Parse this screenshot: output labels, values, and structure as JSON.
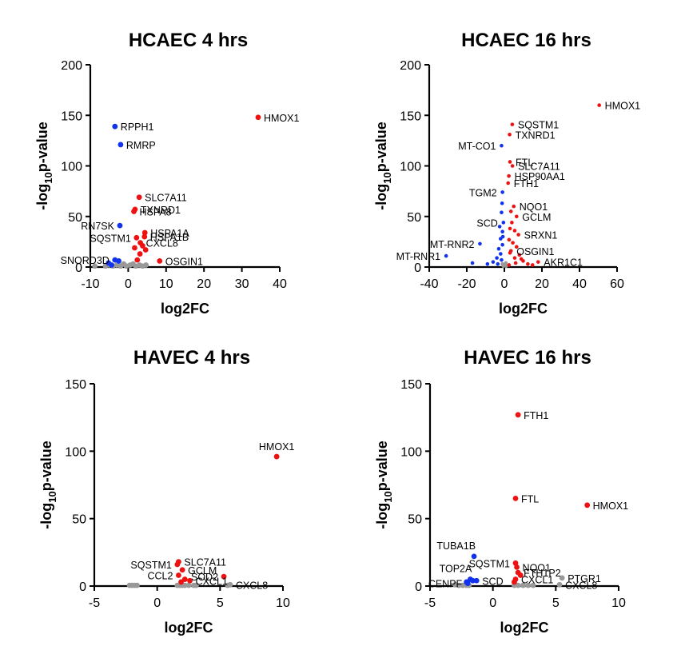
{
  "colors": {
    "up": "#ee1111",
    "down": "#1133ee",
    "ns": "#999999"
  },
  "chart_data": [
    {
      "type": "scatter",
      "title": "HCAEC 4 hrs",
      "xlabel": "log2FC",
      "ylabel": {
        "base": "-log",
        "sub": "10",
        "rest": "p-value"
      },
      "xlim": [
        -10,
        40
      ],
      "ylim": [
        0,
        200
      ],
      "xticks": [
        -10,
        0,
        10,
        20,
        30,
        40
      ],
      "yticks": [
        0,
        50,
        100,
        150,
        200
      ],
      "points": [
        {
          "x": 34.3,
          "y": 148,
          "g": "up",
          "label": "HMOX1",
          "side": "right"
        },
        {
          "x": -3.5,
          "y": 139,
          "g": "down",
          "label": "RPPH1",
          "side": "right"
        },
        {
          "x": -2.0,
          "y": 121,
          "g": "down",
          "label": "RMRP",
          "side": "right"
        },
        {
          "x": 2.9,
          "y": 69,
          "g": "up",
          "label": "SLC7A11",
          "side": "right"
        },
        {
          "x": 1.8,
          "y": 57,
          "g": "up",
          "label": "TXNRD1",
          "side": "right"
        },
        {
          "x": 1.5,
          "y": 55,
          "g": "up",
          "label": "HSPA8",
          "side": "right"
        },
        {
          "x": -2.2,
          "y": 41,
          "g": "down",
          "label": "RN7SK",
          "side": "left"
        },
        {
          "x": 4.4,
          "y": 34,
          "g": "up",
          "label": "HSPA1A",
          "side": "right"
        },
        {
          "x": 2.2,
          "y": 29,
          "g": "up",
          "label": "SQSTM1",
          "side": "left"
        },
        {
          "x": 4.3,
          "y": 30,
          "g": "up",
          "label": "HSPA1B",
          "side": "right"
        },
        {
          "x": 3.2,
          "y": 24,
          "g": "up",
          "label": "CXCL8",
          "side": "right"
        },
        {
          "x": -3.5,
          "y": 7,
          "g": "down",
          "label": "SNORD3D",
          "side": "left"
        },
        {
          "x": 8.3,
          "y": 6,
          "g": "up",
          "label": "OSGIN1",
          "side": "right"
        },
        {
          "x": 1.7,
          "y": 19,
          "g": "up"
        },
        {
          "x": 3.8,
          "y": 21,
          "g": "up"
        },
        {
          "x": 3.1,
          "y": 13,
          "g": "up"
        },
        {
          "x": 2.4,
          "y": 7,
          "g": "up"
        },
        {
          "x": 4.6,
          "y": 17,
          "g": "up"
        },
        {
          "x": -5.2,
          "y": 4,
          "g": "down"
        },
        {
          "x": -2.5,
          "y": 6,
          "g": "down"
        },
        {
          "x": -4.4,
          "y": 2,
          "g": "down"
        },
        {
          "x": -8.8,
          "y": 1,
          "g": "ns"
        },
        {
          "x": -6.0,
          "y": 1,
          "g": "ns"
        },
        {
          "x": -5.0,
          "y": 2,
          "g": "ns"
        },
        {
          "x": -4.0,
          "y": 1,
          "g": "ns"
        },
        {
          "x": -3.0,
          "y": 2,
          "g": "ns"
        },
        {
          "x": -2.0,
          "y": 1,
          "g": "ns"
        },
        {
          "x": -1.2,
          "y": 3,
          "g": "ns"
        },
        {
          "x": -0.5,
          "y": 1,
          "g": "ns"
        },
        {
          "x": 0.5,
          "y": 2,
          "g": "ns"
        },
        {
          "x": 1.3,
          "y": 3,
          "g": "ns"
        },
        {
          "x": 2.0,
          "y": 1,
          "g": "ns"
        },
        {
          "x": 3.0,
          "y": 2,
          "g": "ns"
        },
        {
          "x": 3.8,
          "y": 1,
          "g": "ns"
        },
        {
          "x": 4.7,
          "y": 2,
          "g": "ns"
        }
      ]
    },
    {
      "type": "scatter",
      "title": "HCAEC 16 hrs",
      "xlabel": "log2FC",
      "ylabel": {
        "base": "-log",
        "sub": "10",
        "rest": "p-value"
      },
      "xlim": [
        -40,
        60
      ],
      "ylim": [
        0,
        200
      ],
      "xticks": [
        -40,
        -20,
        0,
        20,
        40,
        60
      ],
      "yticks": [
        0,
        50,
        100,
        150,
        200
      ],
      "points": [
        {
          "x": 50.5,
          "y": 160,
          "g": "up",
          "label": "HMOX1",
          "side": "right"
        },
        {
          "x": 4.2,
          "y": 141,
          "g": "up",
          "label": "SQSTM1",
          "side": "right"
        },
        {
          "x": 2.8,
          "y": 131,
          "g": "up",
          "label": "TXNRD1",
          "side": "right"
        },
        {
          "x": -1.5,
          "y": 120,
          "g": "down",
          "label": "MT-CO1",
          "side": "left"
        },
        {
          "x": 3.0,
          "y": 104,
          "g": "up",
          "label": "FTL",
          "side": "right"
        },
        {
          "x": 4.3,
          "y": 100,
          "g": "up",
          "label": "SLC7A11",
          "side": "right"
        },
        {
          "x": 2.4,
          "y": 90,
          "g": "up",
          "label": "HSP90AA1",
          "side": "right"
        },
        {
          "x": 2.0,
          "y": 83,
          "g": "up",
          "label": "FTH1",
          "side": "right"
        },
        {
          "x": -1.0,
          "y": 74,
          "g": "down",
          "label": "TGM2",
          "side": "left"
        },
        {
          "x": 5.0,
          "y": 60,
          "g": "up",
          "label": "NQO1",
          "side": "right"
        },
        {
          "x": 6.5,
          "y": 50,
          "g": "up",
          "label": "GCLM",
          "side": "right"
        },
        {
          "x": -0.5,
          "y": 44,
          "g": "down",
          "label": "SCD",
          "side": "left"
        },
        {
          "x": 7.5,
          "y": 32,
          "g": "up",
          "label": "SRXN1",
          "side": "right"
        },
        {
          "x": -13.0,
          "y": 23,
          "g": "down",
          "label": "MT-RNR2",
          "side": "left"
        },
        {
          "x": -31.0,
          "y": 11,
          "g": "down",
          "label": "MT-RNR1",
          "side": "left"
        },
        {
          "x": 3.5,
          "y": 16,
          "g": "up",
          "label": "OSGIN1",
          "side": "right"
        },
        {
          "x": 18.0,
          "y": 5,
          "g": "up",
          "label": "AKR1C1",
          "side": "right"
        },
        {
          "x": -1.2,
          "y": 63,
          "g": "down"
        },
        {
          "x": -1.5,
          "y": 54,
          "g": "down"
        },
        {
          "x": -1.0,
          "y": 35,
          "g": "down"
        },
        {
          "x": -2.0,
          "y": 28,
          "g": "down"
        },
        {
          "x": -1.0,
          "y": 22,
          "g": "down"
        },
        {
          "x": -3.0,
          "y": 18,
          "g": "down"
        },
        {
          "x": -2.0,
          "y": 13,
          "g": "down"
        },
        {
          "x": -4.0,
          "y": 9,
          "g": "down"
        },
        {
          "x": -1.5,
          "y": 7,
          "g": "down"
        },
        {
          "x": -6.0,
          "y": 5,
          "g": "down"
        },
        {
          "x": -3.5,
          "y": 3,
          "g": "down"
        },
        {
          "x": -9.0,
          "y": 3,
          "g": "down"
        },
        {
          "x": -17.0,
          "y": 4,
          "g": "down"
        },
        {
          "x": -2.5,
          "y": 40,
          "g": "down"
        },
        {
          "x": -0.8,
          "y": 30,
          "g": "down"
        },
        {
          "x": 4.0,
          "y": 44,
          "g": "up"
        },
        {
          "x": 3.0,
          "y": 38,
          "g": "up"
        },
        {
          "x": 5.5,
          "y": 36,
          "g": "up"
        },
        {
          "x": 2.5,
          "y": 27,
          "g": "up"
        },
        {
          "x": 4.5,
          "y": 24,
          "g": "up"
        },
        {
          "x": 6.5,
          "y": 20,
          "g": "up"
        },
        {
          "x": 3.0,
          "y": 14,
          "g": "up"
        },
        {
          "x": 8.0,
          "y": 12,
          "g": "up"
        },
        {
          "x": 5.5,
          "y": 9,
          "g": "up"
        },
        {
          "x": 10.0,
          "y": 6,
          "g": "up"
        },
        {
          "x": 12.5,
          "y": 3,
          "g": "up"
        },
        {
          "x": 15.0,
          "y": 2,
          "g": "up"
        },
        {
          "x": 6.0,
          "y": 4,
          "g": "up"
        },
        {
          "x": 2.5,
          "y": 2,
          "g": "up"
        },
        {
          "x": 9.0,
          "y": 8,
          "g": "up"
        },
        {
          "x": 3.5,
          "y": 55,
          "g": "up"
        },
        {
          "x": -0.5,
          "y": 1,
          "g": "ns"
        },
        {
          "x": 0.3,
          "y": 2,
          "g": "ns"
        },
        {
          "x": 1.0,
          "y": 1,
          "g": "ns"
        },
        {
          "x": -1.0,
          "y": 3,
          "g": "ns"
        },
        {
          "x": 0.8,
          "y": 4,
          "g": "ns"
        }
      ]
    },
    {
      "type": "scatter",
      "title": "HAVEC 4 hrs",
      "xlabel": "log2FC",
      "ylabel": {
        "base": "-log",
        "sub": "10",
        "rest": "p-value"
      },
      "xlim": [
        -5,
        10
      ],
      "ylim": [
        0,
        150
      ],
      "xticks": [
        -5,
        0,
        5,
        10
      ],
      "yticks": [
        0,
        50,
        100,
        150
      ],
      "points": [
        {
          "x": 9.5,
          "y": 96,
          "g": "up",
          "label": "HMOX1",
          "side": "above"
        },
        {
          "x": 1.7,
          "y": 18,
          "g": "up",
          "label": "SLC7A11",
          "side": "right"
        },
        {
          "x": 1.6,
          "y": 16,
          "g": "up",
          "label": "SQSTM1",
          "side": "left"
        },
        {
          "x": 2.0,
          "y": 12,
          "g": "up",
          "label": "GCLM",
          "side": "right"
        },
        {
          "x": 1.7,
          "y": 8,
          "g": "up",
          "label": "CCL2",
          "side": "left"
        },
        {
          "x": 2.6,
          "y": 4,
          "g": "up",
          "label": "CXCL1",
          "side": "right"
        },
        {
          "x": 5.3,
          "y": 7,
          "g": "up",
          "label": "SOD2",
          "side": "left"
        },
        {
          "x": 5.8,
          "y": 1,
          "g": "ns",
          "label": "CXCL8",
          "side": "right"
        },
        {
          "x": 2.2,
          "y": 5,
          "g": "up"
        },
        {
          "x": 1.9,
          "y": 3,
          "g": "up"
        },
        {
          "x": -2.2,
          "y": 0.5,
          "g": "ns"
        },
        {
          "x": -2.0,
          "y": 0.5,
          "g": "ns"
        },
        {
          "x": -1.8,
          "y": 0.5,
          "g": "ns"
        },
        {
          "x": -1.6,
          "y": 0.5,
          "g": "ns"
        },
        {
          "x": 1.6,
          "y": 0.5,
          "g": "ns"
        },
        {
          "x": 1.8,
          "y": 0.5,
          "g": "ns"
        },
        {
          "x": 2.0,
          "y": 0.5,
          "g": "ns"
        },
        {
          "x": 2.2,
          "y": 0.5,
          "g": "ns"
        },
        {
          "x": 2.5,
          "y": 0.5,
          "g": "ns"
        },
        {
          "x": 2.9,
          "y": 0.5,
          "g": "ns"
        },
        {
          "x": 3.1,
          "y": 0.5,
          "g": "ns"
        },
        {
          "x": 5.6,
          "y": 0.5,
          "g": "ns"
        }
      ]
    },
    {
      "type": "scatter",
      "title": "HAVEC 16 hrs",
      "xlabel": "log2FC",
      "ylabel": {
        "base": "-log",
        "sub": "10",
        "rest": "p-value"
      },
      "xlim": [
        -5,
        10
      ],
      "ylim": [
        0,
        150
      ],
      "xticks": [
        -5,
        0,
        5,
        10
      ],
      "yticks": [
        0,
        50,
        100,
        150
      ],
      "points": [
        {
          "x": 2.0,
          "y": 127,
          "g": "up",
          "label": "FTH1",
          "side": "right"
        },
        {
          "x": 1.8,
          "y": 65,
          "g": "up",
          "label": "FTL",
          "side": "right"
        },
        {
          "x": 7.5,
          "y": 60,
          "g": "up",
          "label": "HMOX1",
          "side": "right"
        },
        {
          "x": -1.5,
          "y": 22,
          "g": "down",
          "label": "TUBA1B",
          "side": "above-left"
        },
        {
          "x": 1.8,
          "y": 17,
          "g": "up",
          "label": "SQSTM1",
          "side": "left"
        },
        {
          "x": 1.9,
          "y": 14,
          "g": "up",
          "label": "NQO1",
          "side": "right"
        },
        {
          "x": 2.0,
          "y": 10,
          "g": "up",
          "label": "FTH1P2",
          "side": "right"
        },
        {
          "x": -1.8,
          "y": 5,
          "g": "down",
          "label": "TOP2A",
          "side": "above-left"
        },
        {
          "x": 1.8,
          "y": 5,
          "g": "up",
          "label": "CXCL1",
          "side": "right"
        },
        {
          "x": 5.5,
          "y": 6,
          "g": "ns",
          "label": "PTGR1",
          "side": "right"
        },
        {
          "x": 5.3,
          "y": 1,
          "g": "ns",
          "label": "CXCL8",
          "side": "right"
        },
        {
          "x": -2.0,
          "y": 2,
          "g": "down",
          "label": "CENPF",
          "side": "left"
        },
        {
          "x": -1.3,
          "y": 4,
          "g": "down",
          "label": "SCD",
          "side": "right"
        },
        {
          "x": -1.6,
          "y": 4,
          "g": "down"
        },
        {
          "x": -2.1,
          "y": 3,
          "g": "down"
        },
        {
          "x": 2.2,
          "y": 8,
          "g": "up"
        },
        {
          "x": 1.7,
          "y": 3,
          "g": "up"
        },
        {
          "x": -3.0,
          "y": 1,
          "g": "ns"
        },
        {
          "x": -2.7,
          "y": 0.5,
          "g": "ns"
        },
        {
          "x": -2.4,
          "y": 0.5,
          "g": "ns"
        },
        {
          "x": -2.1,
          "y": 0.5,
          "g": "ns"
        },
        {
          "x": -1.9,
          "y": 0.5,
          "g": "ns"
        },
        {
          "x": 1.7,
          "y": 0.5,
          "g": "ns"
        },
        {
          "x": 2.0,
          "y": 0.5,
          "g": "ns"
        },
        {
          "x": 2.4,
          "y": 0.5,
          "g": "ns"
        },
        {
          "x": 2.8,
          "y": 0.5,
          "g": "ns"
        },
        {
          "x": 3.2,
          "y": 0.5,
          "g": "ns"
        }
      ]
    }
  ]
}
